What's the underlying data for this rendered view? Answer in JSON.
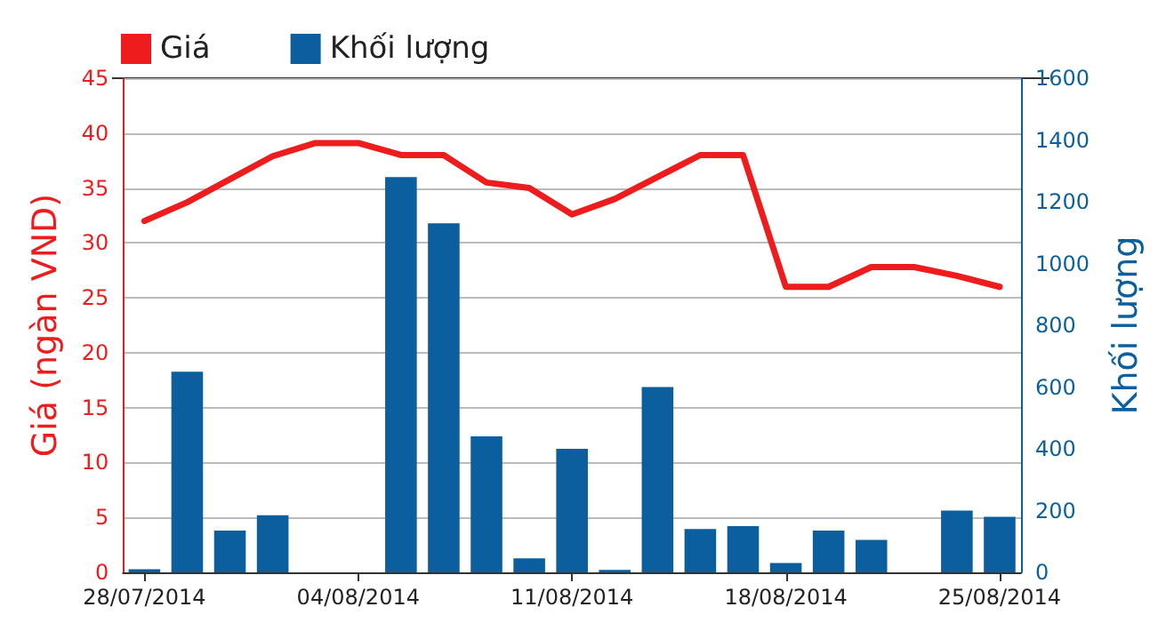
{
  "chart_data": {
    "type": "bar",
    "categories": [
      "28/07/2014",
      null,
      null,
      null,
      null,
      "04/08/2014",
      null,
      null,
      null,
      null,
      "11/08/2014",
      null,
      null,
      null,
      null,
      "18/08/2014",
      null,
      null,
      null,
      null,
      "25/08/2014"
    ],
    "series": [
      {
        "name": "Giá",
        "type": "line",
        "color": "#ee1c1c",
        "values": [
          32,
          33.7,
          35.8,
          37.9,
          39.1,
          39.1,
          38,
          38,
          35.5,
          35,
          32.6,
          34,
          36,
          38,
          38,
          26,
          26,
          27.8,
          27.8,
          27,
          26
        ]
      },
      {
        "name": "Khối lượng",
        "axis": "y2",
        "color": "#0b5f9e",
        "values": [
          10,
          650,
          135,
          185,
          null,
          null,
          1280,
          1130,
          440,
          45,
          400,
          8,
          600,
          140,
          150,
          30,
          135,
          105,
          null,
          200,
          180
        ]
      }
    ],
    "ylabel": "Giá (ngàn VND)",
    "y2label": "Khối lượng",
    "ylim": [
      0,
      45
    ],
    "yticks": [
      0,
      5,
      10,
      15,
      20,
      25,
      30,
      35,
      40,
      45
    ],
    "y2lim": [
      0,
      1600
    ],
    "y2ticks": [
      0,
      200,
      400,
      600,
      800,
      1000,
      1200,
      1400,
      1600
    ],
    "grid": "y",
    "legend": "top left",
    "marker": "none"
  }
}
